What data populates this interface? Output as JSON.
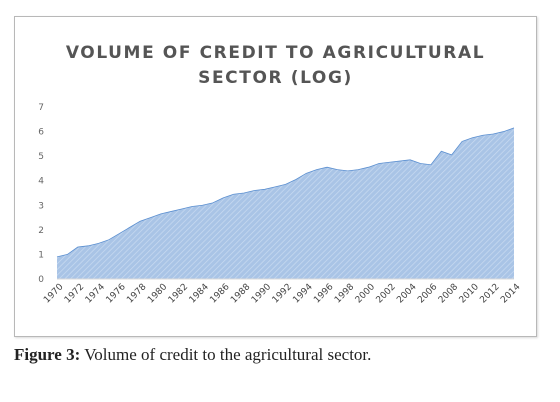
{
  "caption": {
    "lead": "Figure 3:",
    "text": " Volume of credit to the agricultural sector."
  },
  "chart_data": {
    "type": "area",
    "title": "VOLUME OF CREDIT TO AGRICULTURAL SECTOR (LOG)",
    "title_lines": [
      "VOLUME OF CREDIT TO AGRICULTURAL",
      "SECTOR (LOG)"
    ],
    "xlabel": "",
    "ylabel": "",
    "ylim": [
      0,
      7
    ],
    "yticks": [
      0,
      1,
      2,
      3,
      4,
      5,
      6,
      7
    ],
    "grid": false,
    "legend": "none",
    "fill_color": "#a9c4e6",
    "line_color": "#5b8fd0",
    "x_tick_labels": [
      "1970",
      "1972",
      "1974",
      "1976",
      "1978",
      "1980",
      "1982",
      "1984",
      "1986",
      "1988",
      "1990",
      "1992",
      "1994",
      "1996",
      "1998",
      "2000",
      "2002",
      "2004",
      "2006",
      "2008",
      "2010",
      "2012",
      "2014"
    ],
    "x": [
      1970,
      1971,
      1972,
      1973,
      1974,
      1975,
      1976,
      1977,
      1978,
      1979,
      1980,
      1981,
      1982,
      1983,
      1984,
      1985,
      1986,
      1987,
      1988,
      1989,
      1990,
      1991,
      1992,
      1993,
      1994,
      1995,
      1996,
      1997,
      1998,
      1999,
      2000,
      2001,
      2002,
      2003,
      2004,
      2005,
      2006,
      2007,
      2008,
      2009,
      2010,
      2011,
      2012,
      2013,
      2014
    ],
    "values": [
      0.9,
      1.0,
      1.3,
      1.35,
      1.45,
      1.6,
      1.85,
      2.1,
      2.35,
      2.5,
      2.65,
      2.75,
      2.85,
      2.95,
      3.0,
      3.1,
      3.3,
      3.45,
      3.5,
      3.6,
      3.65,
      3.75,
      3.85,
      4.05,
      4.3,
      4.45,
      4.55,
      4.45,
      4.4,
      4.45,
      4.55,
      4.7,
      4.75,
      4.8,
      4.85,
      4.7,
      4.65,
      5.2,
      5.05,
      5.6,
      5.75,
      5.85,
      5.9,
      6.0,
      6.15
    ]
  }
}
